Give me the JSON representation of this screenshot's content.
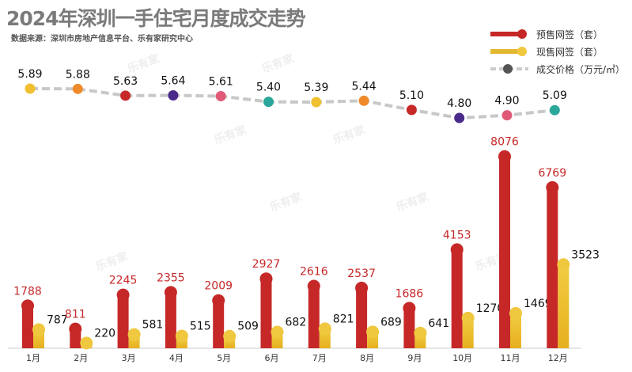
{
  "title": "2024年深圳一手住宅月度成交走势",
  "source": "数据来源：深圳市房地产信息平台、乐有家研究中心",
  "watermark": "乐有家",
  "chart_data": {
    "type": "bar",
    "categories": [
      "1月",
      "2月",
      "3月",
      "4月",
      "5月",
      "6月",
      "7月",
      "8月",
      "9月",
      "10月",
      "11月",
      "12月"
    ],
    "series": [
      {
        "name": "预售网签（套）",
        "type": "bar",
        "color": "#c62828",
        "values": [
          1788,
          811,
          2245,
          2355,
          2009,
          2927,
          2616,
          2537,
          1686,
          4153,
          8076,
          6769
        ]
      },
      {
        "name": "现售网签（套）",
        "type": "bar",
        "color": "#e8c030",
        "values": [
          787,
          220,
          581,
          515,
          509,
          682,
          821,
          689,
          641,
          1270,
          1469,
          3523
        ]
      },
      {
        "name": "成交价格（万元/㎡）",
        "type": "line",
        "color": "#c8c8c8",
        "values": [
          5.89,
          5.88,
          5.63,
          5.64,
          5.61,
          5.4,
          5.39,
          5.44,
          5.1,
          4.8,
          4.9,
          5.09
        ]
      }
    ],
    "point_colors": [
      "#f0c030",
      "#ee8a2a",
      "#c62828",
      "#4a2a8a",
      "#e05a78",
      "#2aa69a",
      "#f0c030",
      "#ee8a2a",
      "#c62828",
      "#4a2a8a",
      "#e05a78",
      "#2aa69a"
    ],
    "legend": "top-right"
  }
}
